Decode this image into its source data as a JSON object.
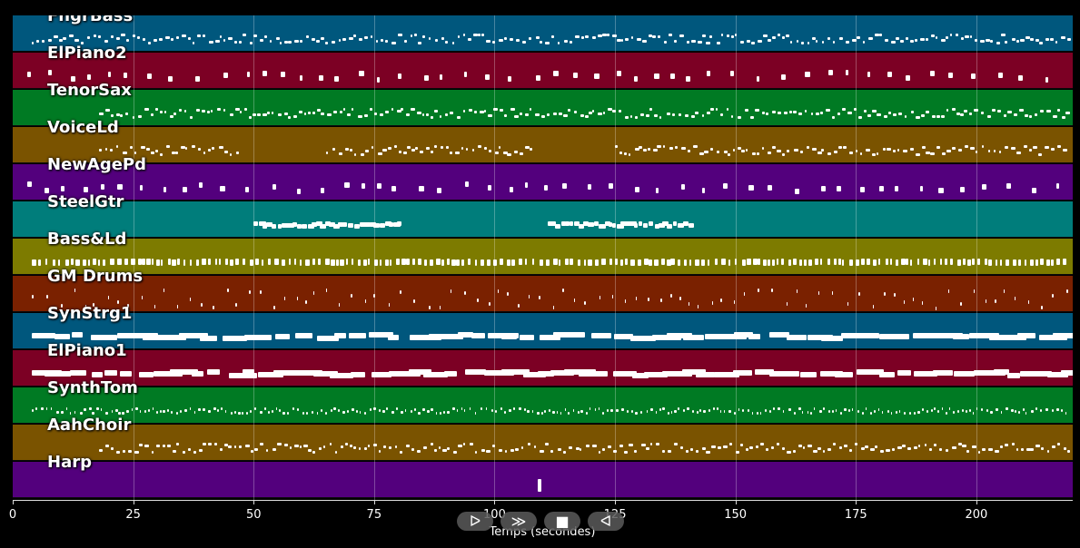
{
  "chart_data": {
    "type": "piano-roll",
    "xlabel": "Temps (secondes)",
    "xlim": [
      0,
      220
    ],
    "xticks": [
      0,
      25,
      50,
      75,
      100,
      125,
      150,
      175,
      200
    ],
    "grid": true,
    "tracks": [
      {
        "name": "FngrBass",
        "color": "#00577d",
        "segments": [
          [
            4,
            219
          ]
        ],
        "density": "dense"
      },
      {
        "name": "ElPiano2",
        "color": "#7c0024",
        "segments": [
          [
            3,
            219
          ]
        ],
        "density": "sparse"
      },
      {
        "name": "TenorSax",
        "color": "#007a23",
        "segments": [
          [
            18,
            219
          ]
        ],
        "density": "dense"
      },
      {
        "name": "VoiceLd",
        "color": "#7a5300",
        "segments": [
          [
            18,
            47
          ],
          [
            65,
            108
          ],
          [
            125,
            219
          ]
        ],
        "density": "dense"
      },
      {
        "name": "NewAgePd",
        "color": "#53007d",
        "segments": [
          [
            3,
            219
          ]
        ],
        "density": "sparse"
      },
      {
        "name": "SteelGtr",
        "color": "#007d7b",
        "segments": [
          [
            50,
            80
          ],
          [
            111,
            141
          ]
        ],
        "density": "block"
      },
      {
        "name": "Bass&Ld",
        "color": "#7d7b00",
        "segments": [
          [
            4,
            219
          ]
        ],
        "density": "bars"
      },
      {
        "name": "GM Drums",
        "color": "#7a2100",
        "segments": [
          [
            4,
            219
          ]
        ],
        "density": "ticks"
      },
      {
        "name": "SynStrg1",
        "color": "#00577d",
        "segments": [
          [
            4,
            219
          ]
        ],
        "density": "long"
      },
      {
        "name": "ElPiano1",
        "color": "#7c0024",
        "segments": [
          [
            4,
            219
          ]
        ],
        "density": "long"
      },
      {
        "name": "SynthTom",
        "color": "#007a23",
        "segments": [
          [
            4,
            219
          ]
        ],
        "density": "fine"
      },
      {
        "name": "AahChoir",
        "color": "#7a5300",
        "segments": [
          [
            18,
            219
          ]
        ],
        "density": "dense"
      },
      {
        "name": "Harp",
        "color": "#53007d",
        "segments": [
          [
            109,
            110
          ]
        ],
        "density": "single"
      }
    ]
  },
  "transport": {
    "play_label": "ᐅ",
    "fast_forward_label": "≫",
    "stop_label": "■",
    "rewind_label": "ᐊ"
  }
}
